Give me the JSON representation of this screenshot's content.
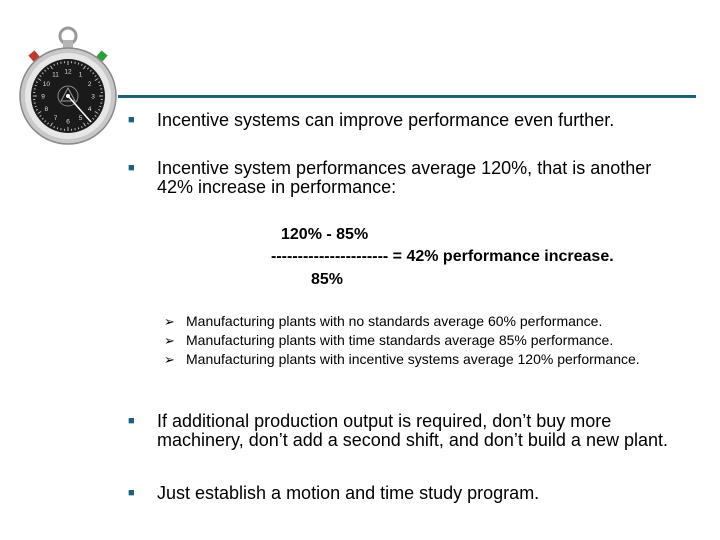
{
  "icons": {
    "stopwatch": "stopwatch-icon",
    "bullet": "square-bullet",
    "arrow": "arrow-bullet"
  },
  "colors": {
    "accent": "#1f5f7a",
    "watch_face": "#1a1a1a",
    "watch_case": "#c8c8c8"
  },
  "watch_numbers": [
    "1",
    "2",
    "3",
    "4",
    "5",
    "6",
    "7",
    "8",
    "9",
    "10",
    "11",
    "12"
  ],
  "bullets": [
    {
      "text": "Incentive systems can improve performance even further."
    },
    {
      "text": "Incentive  system performances average 120%, that is another 42% increase in performance:"
    }
  ],
  "formula": {
    "numerator": "120% - 85%",
    "line": "---------------------- = 42% performance increase.",
    "denominator": "85%"
  },
  "sub_bullets": [
    {
      "text": "Manufacturing plants with no standards average 60% performance."
    },
    {
      "text": "Manufacturing plants with time standards average 85% performance."
    },
    {
      "text": "Manufacturing plants with incentive systems average 120% performance."
    }
  ],
  "bullets_after": [
    {
      "text": "If additional production output is required, don’t buy more machinery, don’t add a second shift, and don’t build a new plant."
    },
    {
      "text": "Just establish a motion and time study program."
    }
  ]
}
